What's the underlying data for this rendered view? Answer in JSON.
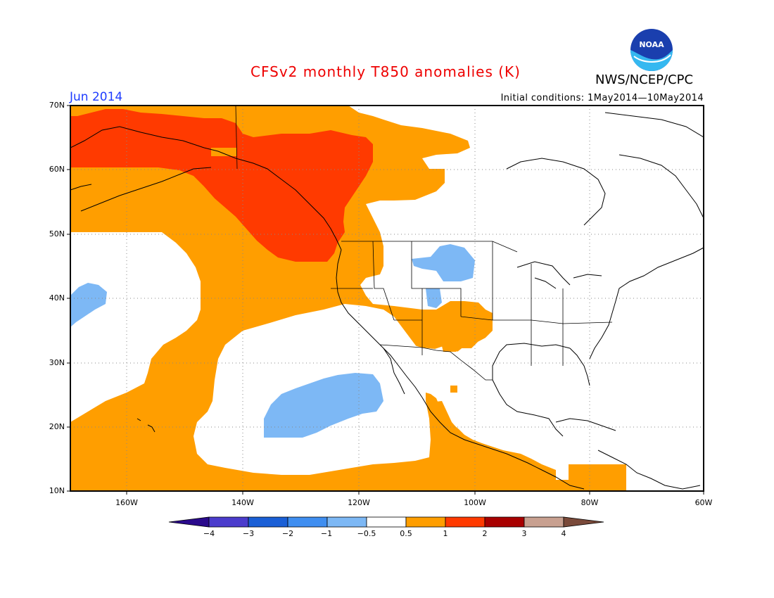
{
  "title": "CFSv2 monthly T850 anomalies (K)",
  "agency": "NWS/NCEP/CPC",
  "logo_text": "NOAA",
  "valid_month": "Jun 2014",
  "initial_conditions": "Initial conditions: 1May2014—10May2014",
  "lat_labels": [
    "70N",
    "60N",
    "50N",
    "40N",
    "30N",
    "20N",
    "10N"
  ],
  "lon_labels": [
    "160W",
    "140W",
    "120W",
    "100W",
    "80W",
    "60W"
  ],
  "colorbar": {
    "labels": [
      "−4",
      "−3",
      "−2",
      "−1",
      "−0.5",
      "0.5",
      "1",
      "2",
      "3",
      "4"
    ],
    "colors": [
      "#2a0a8c",
      "#4b3ccc",
      "#1a5fd6",
      "#3f8ef0",
      "#7db8f5",
      "#ffffff",
      "#ff9e00",
      "#ff3a00",
      "#a80000",
      "#c8a090",
      "#7a4a3a"
    ]
  },
  "legend_colors": {
    "neg_0_5_to_1": "#7db8f5",
    "pos_0_5_to_1": "#ff9e00",
    "pos_1_to_2": "#ff3a00"
  }
}
